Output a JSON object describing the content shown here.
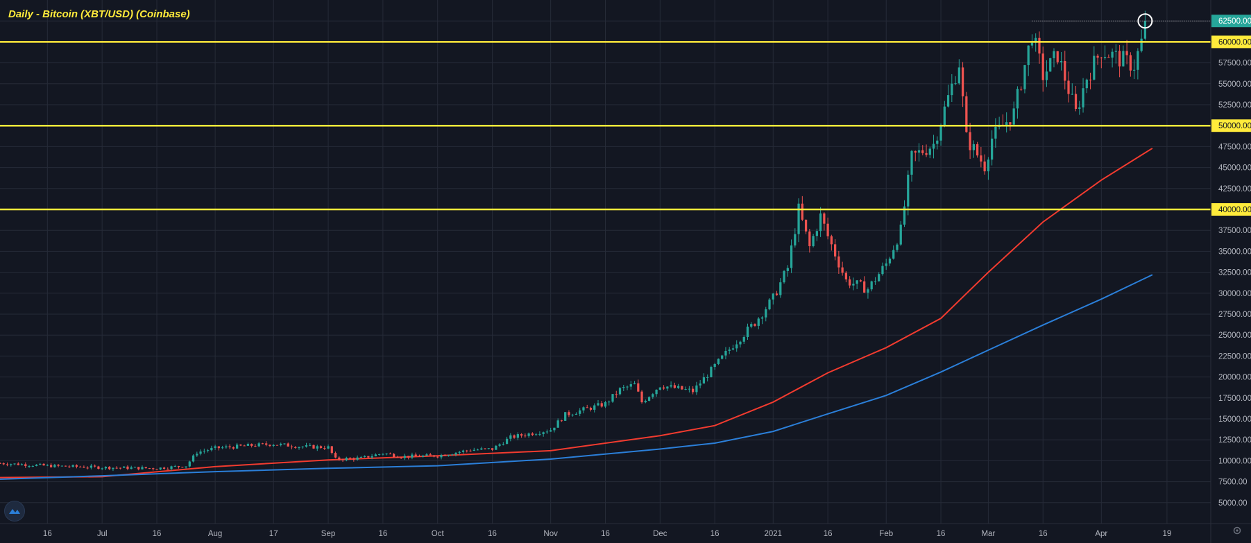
{
  "title": "Daily - Bitcoin (XBT/USD) (Coinbase)",
  "colors": {
    "background": "#131722",
    "grid": "#262b38",
    "axis_text": "#b2b5be",
    "up": "#26a69a",
    "down": "#ef5350",
    "ma_fast": "#f23b2f",
    "ma_slow": "#2b7fd9",
    "hline": "#ffeb3b"
  },
  "icons": {
    "logo": "tradingview-logo-icon",
    "settings": "gear-icon"
  },
  "chart_data": {
    "type": "candlestick",
    "title": "Daily - Bitcoin (XBT/USD) (Coinbase)",
    "ylim": [
      2500,
      65000
    ],
    "y_ticks": [
      5000,
      7500,
      10000,
      12500,
      15000,
      17500,
      20000,
      22500,
      25000,
      27500,
      30000,
      32500,
      35000,
      37500,
      40000,
      42500,
      45000,
      47500,
      50000,
      52500,
      55000,
      57500,
      60000,
      62500
    ],
    "x_tick_labels": [
      "16",
      "Jul",
      "16",
      "Aug",
      "17",
      "Sep",
      "16",
      "Oct",
      "16",
      "Nov",
      "16",
      "Dec",
      "16",
      "2021",
      "16",
      "Feb",
      "16",
      "Mar",
      "16",
      "Apr",
      "19"
    ],
    "x_tick_dates": [
      "2020-06-16",
      "2020-07-01",
      "2020-07-16",
      "2020-08-01",
      "2020-08-17",
      "2020-09-01",
      "2020-09-16",
      "2020-10-01",
      "2020-10-16",
      "2020-11-01",
      "2020-11-16",
      "2020-12-01",
      "2020-12-16",
      "2021-01-01",
      "2021-01-16",
      "2021-02-01",
      "2021-02-16",
      "2021-03-01",
      "2021-03-16",
      "2021-04-01",
      "2021-04-19"
    ],
    "x_range": [
      "2020-06-03",
      "2021-05-01"
    ],
    "horizontal_lines": [
      60000,
      50000,
      40000
    ],
    "horizontal_line_labels": [
      "60000.00",
      "50000.00",
      "40000.00"
    ],
    "last_price": 62500,
    "last_price_label": "62500.00",
    "highlight": {
      "date": "2021-04-13",
      "value": 62500,
      "marker": "circle"
    },
    "price_path": [
      [
        "2020-06-03",
        9700
      ],
      [
        "2020-06-16",
        9400
      ],
      [
        "2020-07-01",
        9200
      ],
      [
        "2020-07-16",
        9100
      ],
      [
        "2020-07-24",
        9400
      ],
      [
        "2020-07-27",
        11000
      ],
      [
        "2020-08-01",
        11500
      ],
      [
        "2020-08-10",
        11800
      ],
      [
        "2020-08-17",
        12000
      ],
      [
        "2020-08-24",
        11700
      ],
      [
        "2020-09-01",
        11600
      ],
      [
        "2020-09-03",
        10200
      ],
      [
        "2020-09-10",
        10300
      ],
      [
        "2020-09-16",
        10900
      ],
      [
        "2020-09-21",
        10500
      ],
      [
        "2020-10-01",
        10600
      ],
      [
        "2020-10-10",
        11300
      ],
      [
        "2020-10-16",
        11400
      ],
      [
        "2020-10-21",
        12800
      ],
      [
        "2020-11-01",
        13700
      ],
      [
        "2020-11-05",
        15500
      ],
      [
        "2020-11-16",
        16800
      ],
      [
        "2020-11-20",
        18500
      ],
      [
        "2020-11-24",
        19100
      ],
      [
        "2020-11-26",
        17000
      ],
      [
        "2020-12-01",
        19000
      ],
      [
        "2020-12-10",
        18300
      ],
      [
        "2020-12-16",
        21300
      ],
      [
        "2020-12-21",
        23800
      ],
      [
        "2020-12-27",
        26500
      ],
      [
        "2021-01-01",
        29400
      ],
      [
        "2021-01-05",
        33000
      ],
      [
        "2021-01-08",
        40000
      ],
      [
        "2021-01-11",
        35500
      ],
      [
        "2021-01-14",
        39200
      ],
      [
        "2021-01-16",
        36800
      ],
      [
        "2021-01-21",
        31500
      ],
      [
        "2021-01-27",
        30500
      ],
      [
        "2021-02-01",
        33500
      ],
      [
        "2021-02-05",
        37500
      ],
      [
        "2021-02-08",
        46200
      ],
      [
        "2021-02-14",
        47800
      ],
      [
        "2021-02-21",
        57500
      ],
      [
        "2021-02-23",
        48500
      ],
      [
        "2021-02-28",
        45200
      ],
      [
        "2021-03-02",
        48500
      ],
      [
        "2021-03-08",
        51500
      ],
      [
        "2021-03-13",
        61000
      ],
      [
        "2021-03-16",
        56000
      ],
      [
        "2021-03-20",
        58500
      ],
      [
        "2021-03-25",
        51500
      ],
      [
        "2021-03-28",
        55800
      ],
      [
        "2021-04-01",
        59000
      ],
      [
        "2021-04-06",
        58000
      ],
      [
        "2021-04-10",
        57200
      ],
      [
        "2021-04-12",
        60000
      ],
      [
        "2021-04-13",
        62500
      ]
    ],
    "series": [
      {
        "name": "",
        "color": "#f23b2f",
        "points": [
          [
            "2020-06-03",
            8000
          ],
          [
            "2020-07-01",
            8100
          ],
          [
            "2020-08-01",
            9300
          ],
          [
            "2020-09-01",
            10100
          ],
          [
            "2020-10-01",
            10600
          ],
          [
            "2020-11-01",
            11200
          ],
          [
            "2020-12-01",
            13000
          ],
          [
            "2020-12-16",
            14200
          ],
          [
            "2021-01-01",
            17000
          ],
          [
            "2021-01-16",
            20500
          ],
          [
            "2021-02-01",
            23500
          ],
          [
            "2021-02-16",
            27000
          ],
          [
            "2021-03-01",
            32500
          ],
          [
            "2021-03-16",
            38500
          ],
          [
            "2021-04-01",
            43500
          ],
          [
            "2021-04-15",
            47300
          ]
        ]
      },
      {
        "name": "",
        "color": "#2b7fd9",
        "points": [
          [
            "2020-06-03",
            7800
          ],
          [
            "2020-07-01",
            8200
          ],
          [
            "2020-08-01",
            8700
          ],
          [
            "2020-09-01",
            9100
          ],
          [
            "2020-10-01",
            9400
          ],
          [
            "2020-11-01",
            10200
          ],
          [
            "2020-12-01",
            11400
          ],
          [
            "2020-12-16",
            12100
          ],
          [
            "2021-01-01",
            13500
          ],
          [
            "2021-01-16",
            15600
          ],
          [
            "2021-02-01",
            17800
          ],
          [
            "2021-02-16",
            20600
          ],
          [
            "2021-03-01",
            23200
          ],
          [
            "2021-03-16",
            26200
          ],
          [
            "2021-04-01",
            29300
          ],
          [
            "2021-04-15",
            32200
          ]
        ]
      }
    ]
  }
}
